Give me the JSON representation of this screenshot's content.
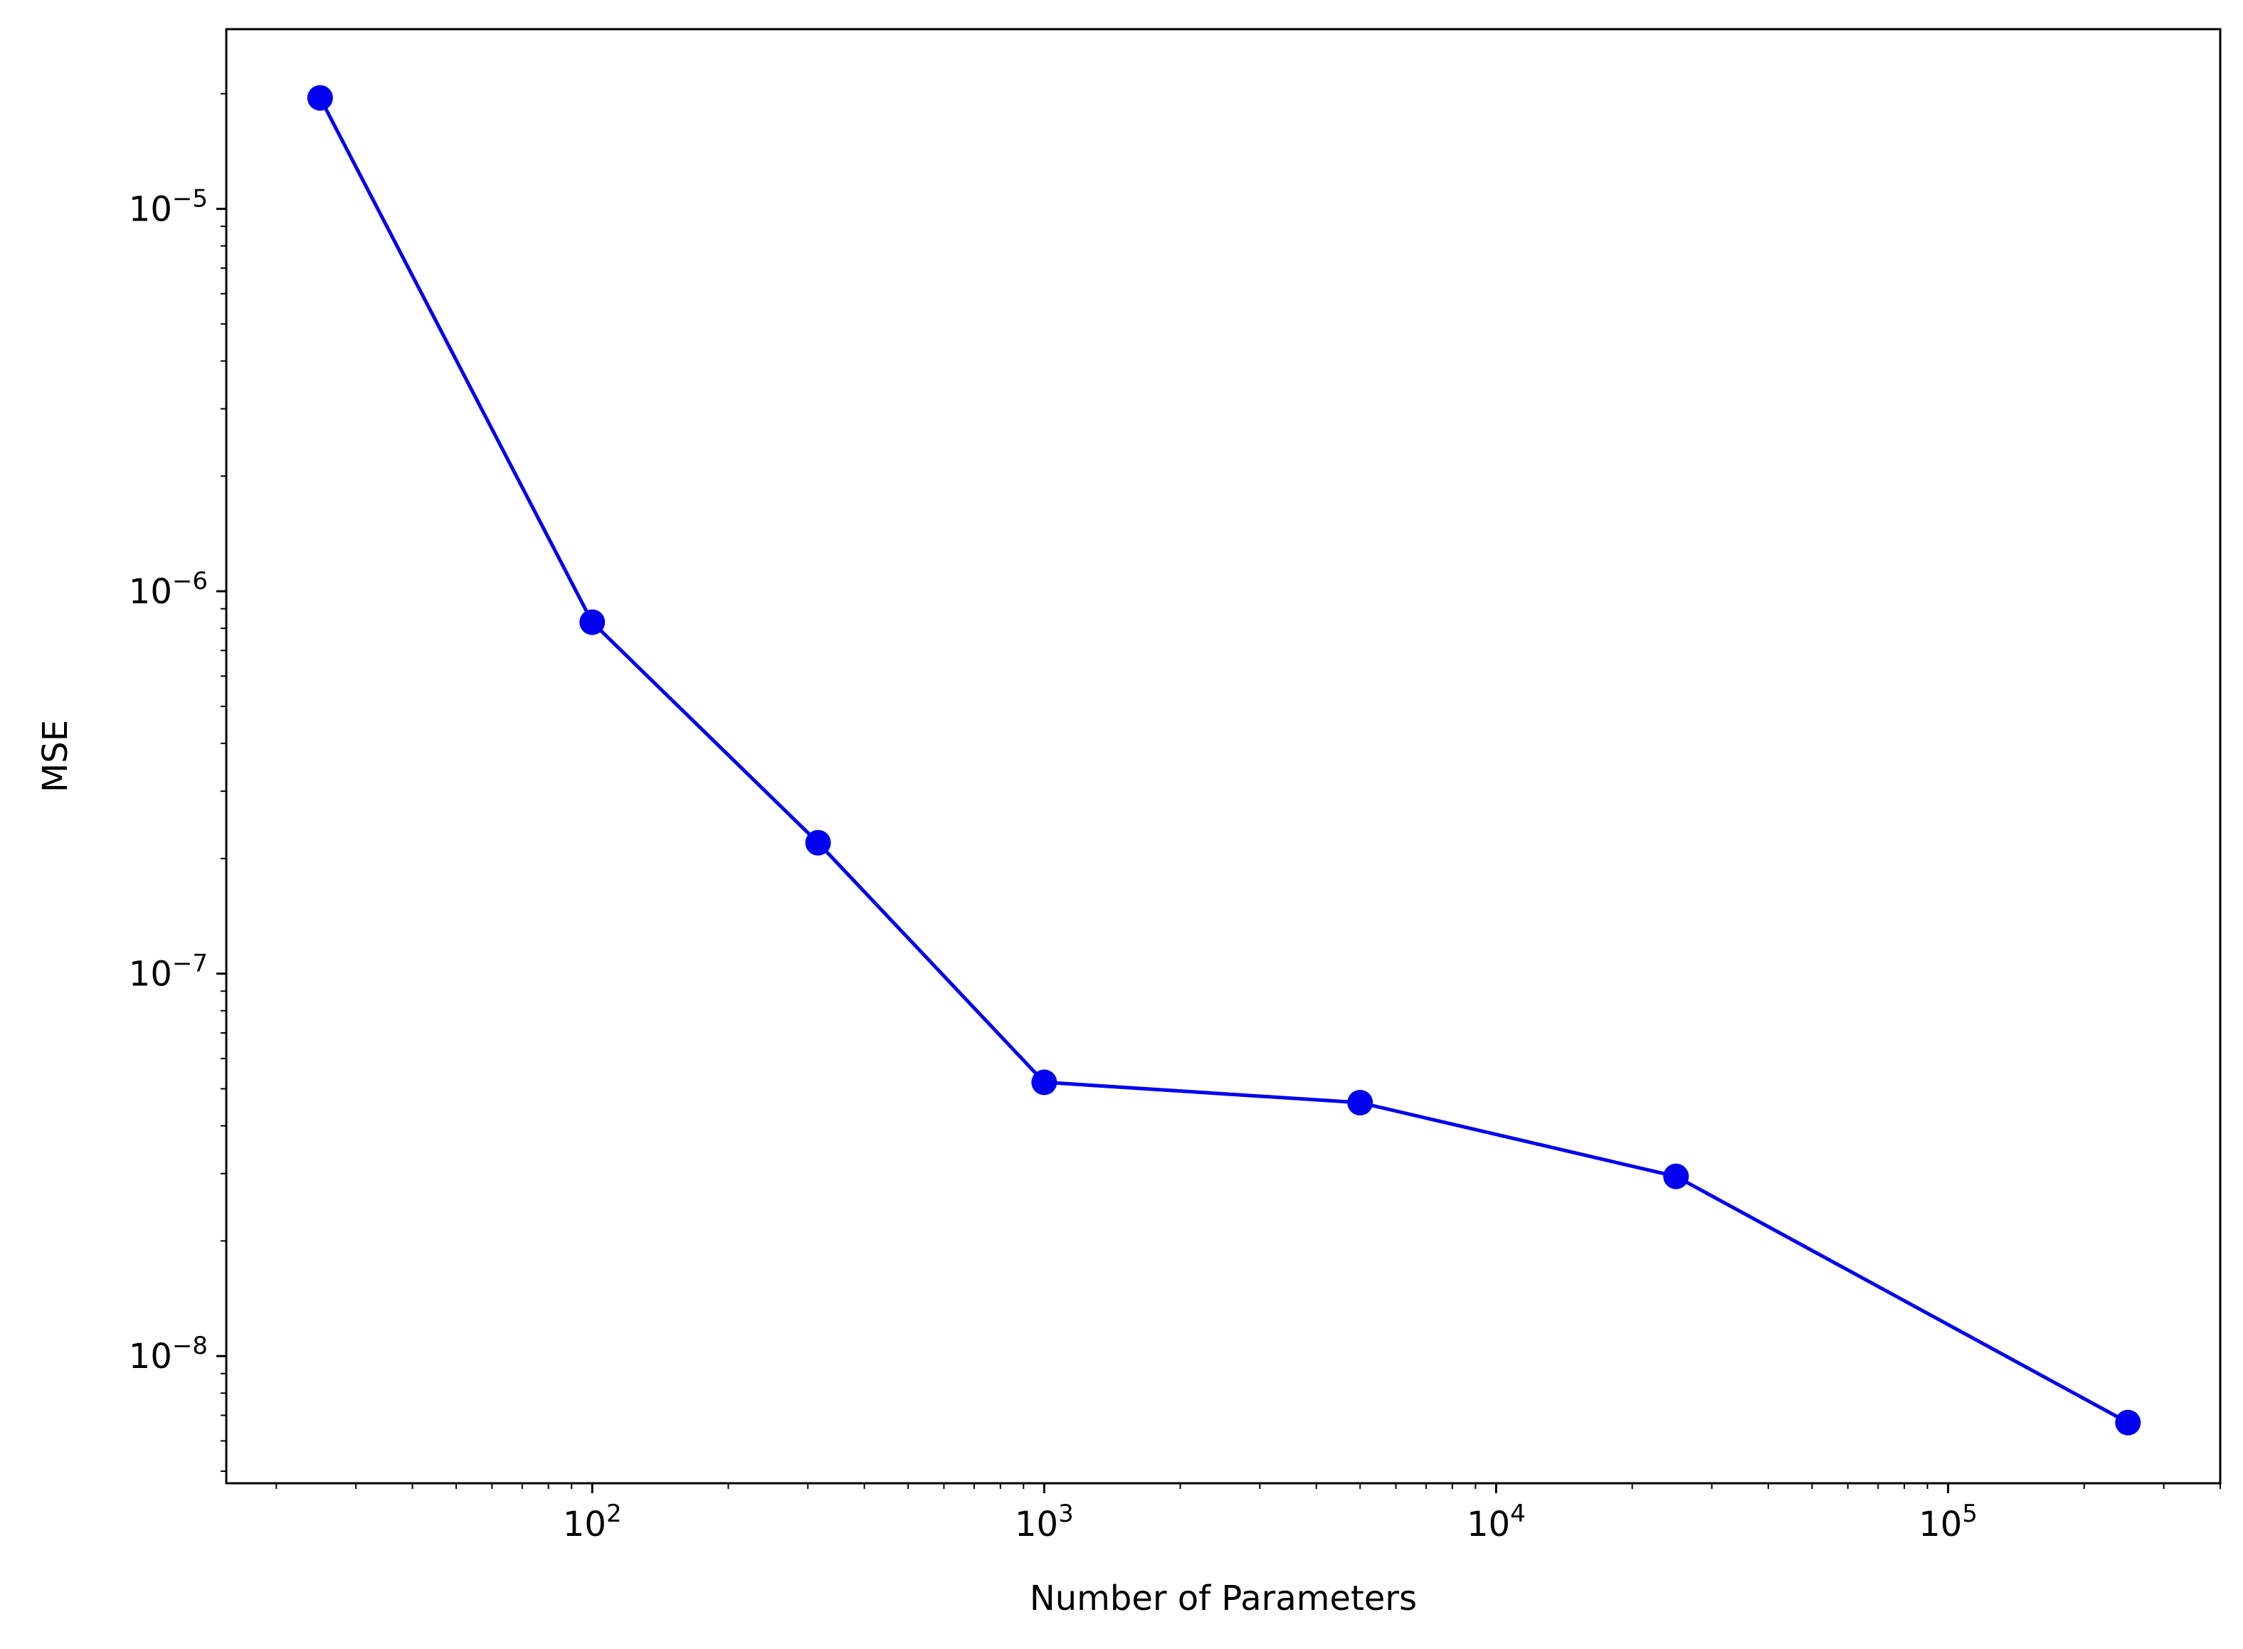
{
  "chart_data": {
    "type": "line",
    "title": "",
    "xlabel": "Number of Parameters",
    "ylabel": "MSE",
    "xscale": "log",
    "yscale": "log",
    "xlim": [
      15.5,
      400000
    ],
    "ylim": [
      4.65e-09,
      2.95e-05
    ],
    "grid": false,
    "legend": "none",
    "series": [
      {
        "color": "#0000ee",
        "marker": "circle",
        "x": [
          25,
          100,
          316,
          1000,
          5000,
          25000,
          250000
        ],
        "y": [
          1.95e-05,
          8.3e-07,
          2.2e-07,
          5.2e-08,
          4.6e-08,
          2.95e-08,
          6.7e-09
        ]
      }
    ],
    "x_ticks": [
      {
        "value": 100,
        "base": "10",
        "exp": "2"
      },
      {
        "value": 1000,
        "base": "10",
        "exp": "3"
      },
      {
        "value": 10000,
        "base": "10",
        "exp": "4"
      },
      {
        "value": 100000,
        "base": "10",
        "exp": "5"
      }
    ],
    "y_ticks": [
      {
        "value": 1e-05,
        "base": "10",
        "exp": "−5"
      },
      {
        "value": 1e-06,
        "base": "10",
        "exp": "−6"
      },
      {
        "value": 1e-07,
        "base": "10",
        "exp": "−7"
      },
      {
        "value": 1e-08,
        "base": "10",
        "exp": "−8"
      }
    ]
  }
}
